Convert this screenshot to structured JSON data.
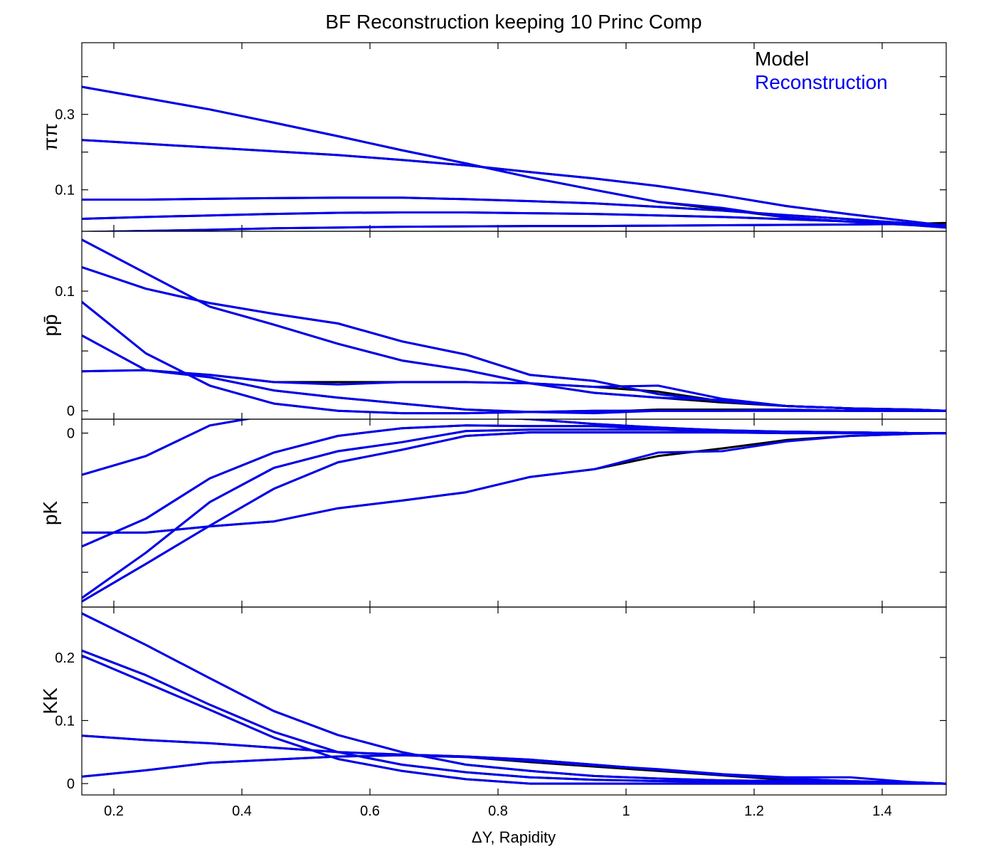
{
  "chart_data": {
    "type": "line",
    "title": "BF Reconstruction keeping 10 Princ Comp",
    "xlabel": "ΔY, Rapidity",
    "xlim": [
      0.15,
      1.5
    ],
    "xticks": [
      0.2,
      0.4,
      0.6,
      0.8,
      1,
      1.2,
      1.4
    ],
    "xtick_labels": [
      "0.2",
      "0.4",
      "0.6",
      "0.8",
      "1",
      "1.2",
      "1.4"
    ],
    "grid": false,
    "legend": {
      "placement": "top-right",
      "entries": [
        {
          "label": "Model",
          "color": "#000000"
        },
        {
          "label": "Reconstruction",
          "color": "#0000ee"
        }
      ]
    },
    "x": [
      0.15,
      0.25,
      0.35,
      0.45,
      0.55,
      0.65,
      0.75,
      0.85,
      0.95,
      1.05,
      1.15,
      1.25,
      1.35,
      1.45,
      1.5
    ],
    "panels": [
      {
        "ylabel": "ππ",
        "ylim": [
          -0.01,
          0.49
        ],
        "ytick_values": [
          0.1,
          0.3
        ],
        "ytick_labels": [
          "0.1",
          "0.3"
        ],
        "minor_tick_values": [
          0.2,
          0.4
        ],
        "model": [
          [
            0.373,
            0.343,
            0.313,
            0.278,
            0.242,
            0.205,
            0.17,
            0.133,
            0.1,
            0.068,
            0.048,
            0.027,
            0.015,
            0.006,
            0.0
          ],
          [
            0.232,
            0.222,
            0.212,
            0.202,
            0.192,
            0.179,
            0.165,
            0.147,
            0.13,
            0.11,
            0.085,
            0.057,
            0.035,
            0.015,
            0.005
          ],
          [
            0.074,
            0.074,
            0.076,
            0.078,
            0.079,
            0.079,
            0.075,
            0.07,
            0.064,
            0.055,
            0.045,
            0.033,
            0.022,
            0.01,
            0.005
          ],
          [
            0.023,
            0.028,
            0.032,
            0.036,
            0.039,
            0.04,
            0.04,
            0.038,
            0.036,
            0.032,
            0.028,
            0.022,
            0.016,
            0.008,
            0.004
          ],
          [
            -0.012,
            -0.009,
            -0.006,
            -0.002,
            0.0,
            0.002,
            0.003,
            0.004,
            0.004,
            0.005,
            0.006,
            0.007,
            0.008,
            0.01,
            0.012
          ]
        ],
        "reconstruction": [
          [
            0.373,
            0.343,
            0.313,
            0.278,
            0.242,
            0.205,
            0.17,
            0.133,
            0.1,
            0.068,
            0.052,
            0.027,
            0.015,
            0.006,
            0.0
          ],
          [
            0.232,
            0.222,
            0.212,
            0.202,
            0.192,
            0.179,
            0.165,
            0.147,
            0.13,
            0.11,
            0.085,
            0.057,
            0.035,
            0.015,
            0.005
          ],
          [
            0.074,
            0.074,
            0.076,
            0.078,
            0.079,
            0.079,
            0.075,
            0.07,
            0.064,
            0.055,
            0.045,
            0.033,
            0.022,
            0.01,
            0.005
          ],
          [
            0.023,
            0.028,
            0.032,
            0.036,
            0.039,
            0.04,
            0.04,
            0.038,
            0.036,
            0.032,
            0.028,
            0.022,
            0.016,
            0.008,
            0.004
          ],
          [
            -0.012,
            -0.009,
            -0.006,
            -0.002,
            0.0,
            0.002,
            0.003,
            0.004,
            0.004,
            0.005,
            0.006,
            0.007,
            0.008,
            0.01,
            0.006
          ]
        ]
      },
      {
        "ylabel": "pp̄",
        "ylim": [
          -0.007,
          0.15
        ],
        "ytick_values": [
          0,
          0.1
        ],
        "ytick_labels": [
          "0",
          "0.1"
        ],
        "minor_tick_values": [
          0.05
        ],
        "model": [
          [
            0.143,
            0.115,
            0.087,
            0.072,
            0.056,
            0.042,
            0.034,
            0.023,
            0.015,
            0.011,
            0.007,
            0.004,
            0.002,
            0.001,
            0.0
          ],
          [
            0.12,
            0.102,
            0.09,
            0.081,
            0.073,
            0.058,
            0.047,
            0.03,
            0.025,
            0.014,
            0.008,
            0.004,
            0.002,
            0.001,
            0.0
          ],
          [
            0.091,
            0.048,
            0.021,
            0.006,
            0.0,
            -0.002,
            -0.002,
            -0.001,
            0.0,
            0.0,
            0.0,
            0.0,
            0.0,
            0.0,
            0.0
          ],
          [
            0.063,
            0.034,
            0.028,
            0.017,
            0.011,
            0.006,
            0.001,
            -0.001,
            -0.001,
            0.001,
            0.001,
            0.001,
            0.0,
            0.0,
            0.0
          ],
          [
            0.033,
            0.034,
            0.03,
            0.024,
            0.024,
            0.024,
            0.024,
            0.023,
            0.02,
            0.016,
            0.008,
            0.004,
            0.002,
            0.0,
            0.0
          ]
        ],
        "reconstruction": [
          [
            0.143,
            0.115,
            0.087,
            0.072,
            0.056,
            0.042,
            0.034,
            0.023,
            0.015,
            0.011,
            0.009,
            0.004,
            0.002,
            0.001,
            0.0
          ],
          [
            0.12,
            0.102,
            0.09,
            0.081,
            0.073,
            0.058,
            0.047,
            0.03,
            0.025,
            0.014,
            0.008,
            0.004,
            0.002,
            0.001,
            0.0
          ],
          [
            0.091,
            0.048,
            0.021,
            0.006,
            0.0,
            -0.002,
            -0.002,
            -0.001,
            0.0,
            0.0,
            0.0,
            0.0,
            0.0,
            0.0,
            0.0
          ],
          [
            0.063,
            0.034,
            0.028,
            0.017,
            0.011,
            0.006,
            0.001,
            -0.001,
            -0.002,
            0.0,
            0.0,
            0.001,
            0.0,
            0.0,
            0.0
          ],
          [
            0.033,
            0.034,
            0.03,
            0.024,
            0.022,
            0.024,
            0.024,
            0.023,
            0.02,
            0.021,
            0.01,
            0.004,
            0.002,
            0.0,
            0.0
          ]
        ]
      },
      {
        "ylabel": "pK",
        "ylim": [
          -0.25,
          0.02
        ],
        "ytick_values": [
          0
        ],
        "ytick_labels": [
          "0"
        ],
        "minor_tick_values": [
          -0.1,
          -0.2
        ],
        "model": [
          [
            -0.06,
            -0.033,
            0.011,
            0.027,
            0.029,
            0.026,
            0.024,
            0.02,
            0.013,
            0.008,
            0.004,
            0.002,
            0.001,
            0.0,
            0.0
          ],
          [
            -0.143,
            -0.143,
            -0.134,
            -0.127,
            -0.108,
            -0.097,
            -0.085,
            -0.063,
            -0.052,
            -0.033,
            -0.022,
            -0.01,
            -0.004,
            -0.001,
            0.0
          ],
          [
            -0.163,
            -0.123,
            -0.065,
            -0.028,
            -0.004,
            0.007,
            0.011,
            0.01,
            0.01,
            0.006,
            0.003,
            0.002,
            0.001,
            0.0,
            0.0
          ],
          [
            -0.237,
            -0.172,
            -0.099,
            -0.05,
            -0.026,
            -0.013,
            0.003,
            0.005,
            0.005,
            0.005,
            0.003,
            0.001,
            0.001,
            0.0,
            0.0
          ],
          [
            -0.242,
            -0.188,
            -0.133,
            -0.08,
            -0.042,
            -0.024,
            -0.004,
            0.001,
            0.001,
            0.001,
            0.001,
            0.0,
            0.0,
            0.0,
            0.0
          ]
        ],
        "reconstruction": [
          [
            -0.06,
            -0.033,
            0.011,
            0.027,
            0.029,
            0.026,
            0.024,
            0.02,
            0.013,
            0.008,
            0.004,
            0.002,
            0.001,
            0.0,
            0.0
          ],
          [
            -0.143,
            -0.143,
            -0.134,
            -0.127,
            -0.108,
            -0.097,
            -0.085,
            -0.063,
            -0.052,
            -0.028,
            -0.026,
            -0.012,
            -0.004,
            -0.001,
            0.0
          ],
          [
            -0.163,
            -0.123,
            -0.065,
            -0.028,
            -0.004,
            0.007,
            0.011,
            0.01,
            0.01,
            0.006,
            0.003,
            0.002,
            0.001,
            0.0,
            0.0
          ],
          [
            -0.237,
            -0.172,
            -0.099,
            -0.05,
            -0.026,
            -0.013,
            0.003,
            0.005,
            0.005,
            0.005,
            0.003,
            0.001,
            0.001,
            0.0,
            0.0
          ],
          [
            -0.242,
            -0.188,
            -0.133,
            -0.08,
            -0.042,
            -0.024,
            -0.004,
            0.001,
            0.001,
            0.001,
            0.001,
            0.0,
            0.0,
            0.0,
            0.0
          ]
        ]
      },
      {
        "ylabel": "KK",
        "ylim": [
          -0.018,
          0.28
        ],
        "ytick_values": [
          0,
          0.1,
          0.2
        ],
        "ytick_labels": [
          "0",
          "0.1",
          "0.2"
        ],
        "minor_tick_values": [],
        "model": [
          [
            0.27,
            0.22,
            0.167,
            0.115,
            0.077,
            0.05,
            0.03,
            0.02,
            0.012,
            0.008,
            0.005,
            0.004,
            0.003,
            0.002,
            0.0
          ],
          [
            0.211,
            0.172,
            0.125,
            0.082,
            0.05,
            0.03,
            0.018,
            0.01,
            0.006,
            0.004,
            0.003,
            0.003,
            0.002,
            0.001,
            0.0
          ],
          [
            0.203,
            0.16,
            0.117,
            0.073,
            0.039,
            0.02,
            0.007,
            0.0,
            0.0,
            0.0,
            0.0,
            0.0,
            0.0,
            0.0,
            0.0
          ],
          [
            0.076,
            0.069,
            0.064,
            0.057,
            0.05,
            0.046,
            0.043,
            0.038,
            0.03,
            0.022,
            0.014,
            0.008,
            0.004,
            0.001,
            0.0
          ],
          [
            0.011,
            0.021,
            0.033,
            0.038,
            0.043,
            0.045,
            0.042,
            0.034,
            0.027,
            0.02,
            0.013,
            0.006,
            0.002,
            0.001,
            0.0
          ]
        ],
        "reconstruction": [
          [
            0.27,
            0.22,
            0.167,
            0.115,
            0.077,
            0.05,
            0.03,
            0.02,
            0.012,
            0.008,
            0.005,
            0.004,
            0.003,
            0.002,
            0.0
          ],
          [
            0.211,
            0.172,
            0.125,
            0.082,
            0.05,
            0.03,
            0.018,
            0.01,
            0.006,
            0.004,
            0.003,
            0.003,
            0.002,
            0.001,
            0.0
          ],
          [
            0.203,
            0.16,
            0.117,
            0.073,
            0.039,
            0.02,
            0.007,
            0.0,
            0.0,
            0.0,
            0.0,
            0.0,
            0.0,
            0.0,
            0.0
          ],
          [
            0.076,
            0.069,
            0.064,
            0.057,
            0.05,
            0.046,
            0.043,
            0.038,
            0.03,
            0.022,
            0.014,
            0.008,
            0.004,
            0.001,
            0.0
          ],
          [
            0.011,
            0.021,
            0.033,
            0.038,
            0.043,
            0.045,
            0.042,
            0.036,
            0.029,
            0.023,
            0.015,
            0.01,
            0.01,
            0.002,
            0.0
          ]
        ]
      }
    ]
  }
}
